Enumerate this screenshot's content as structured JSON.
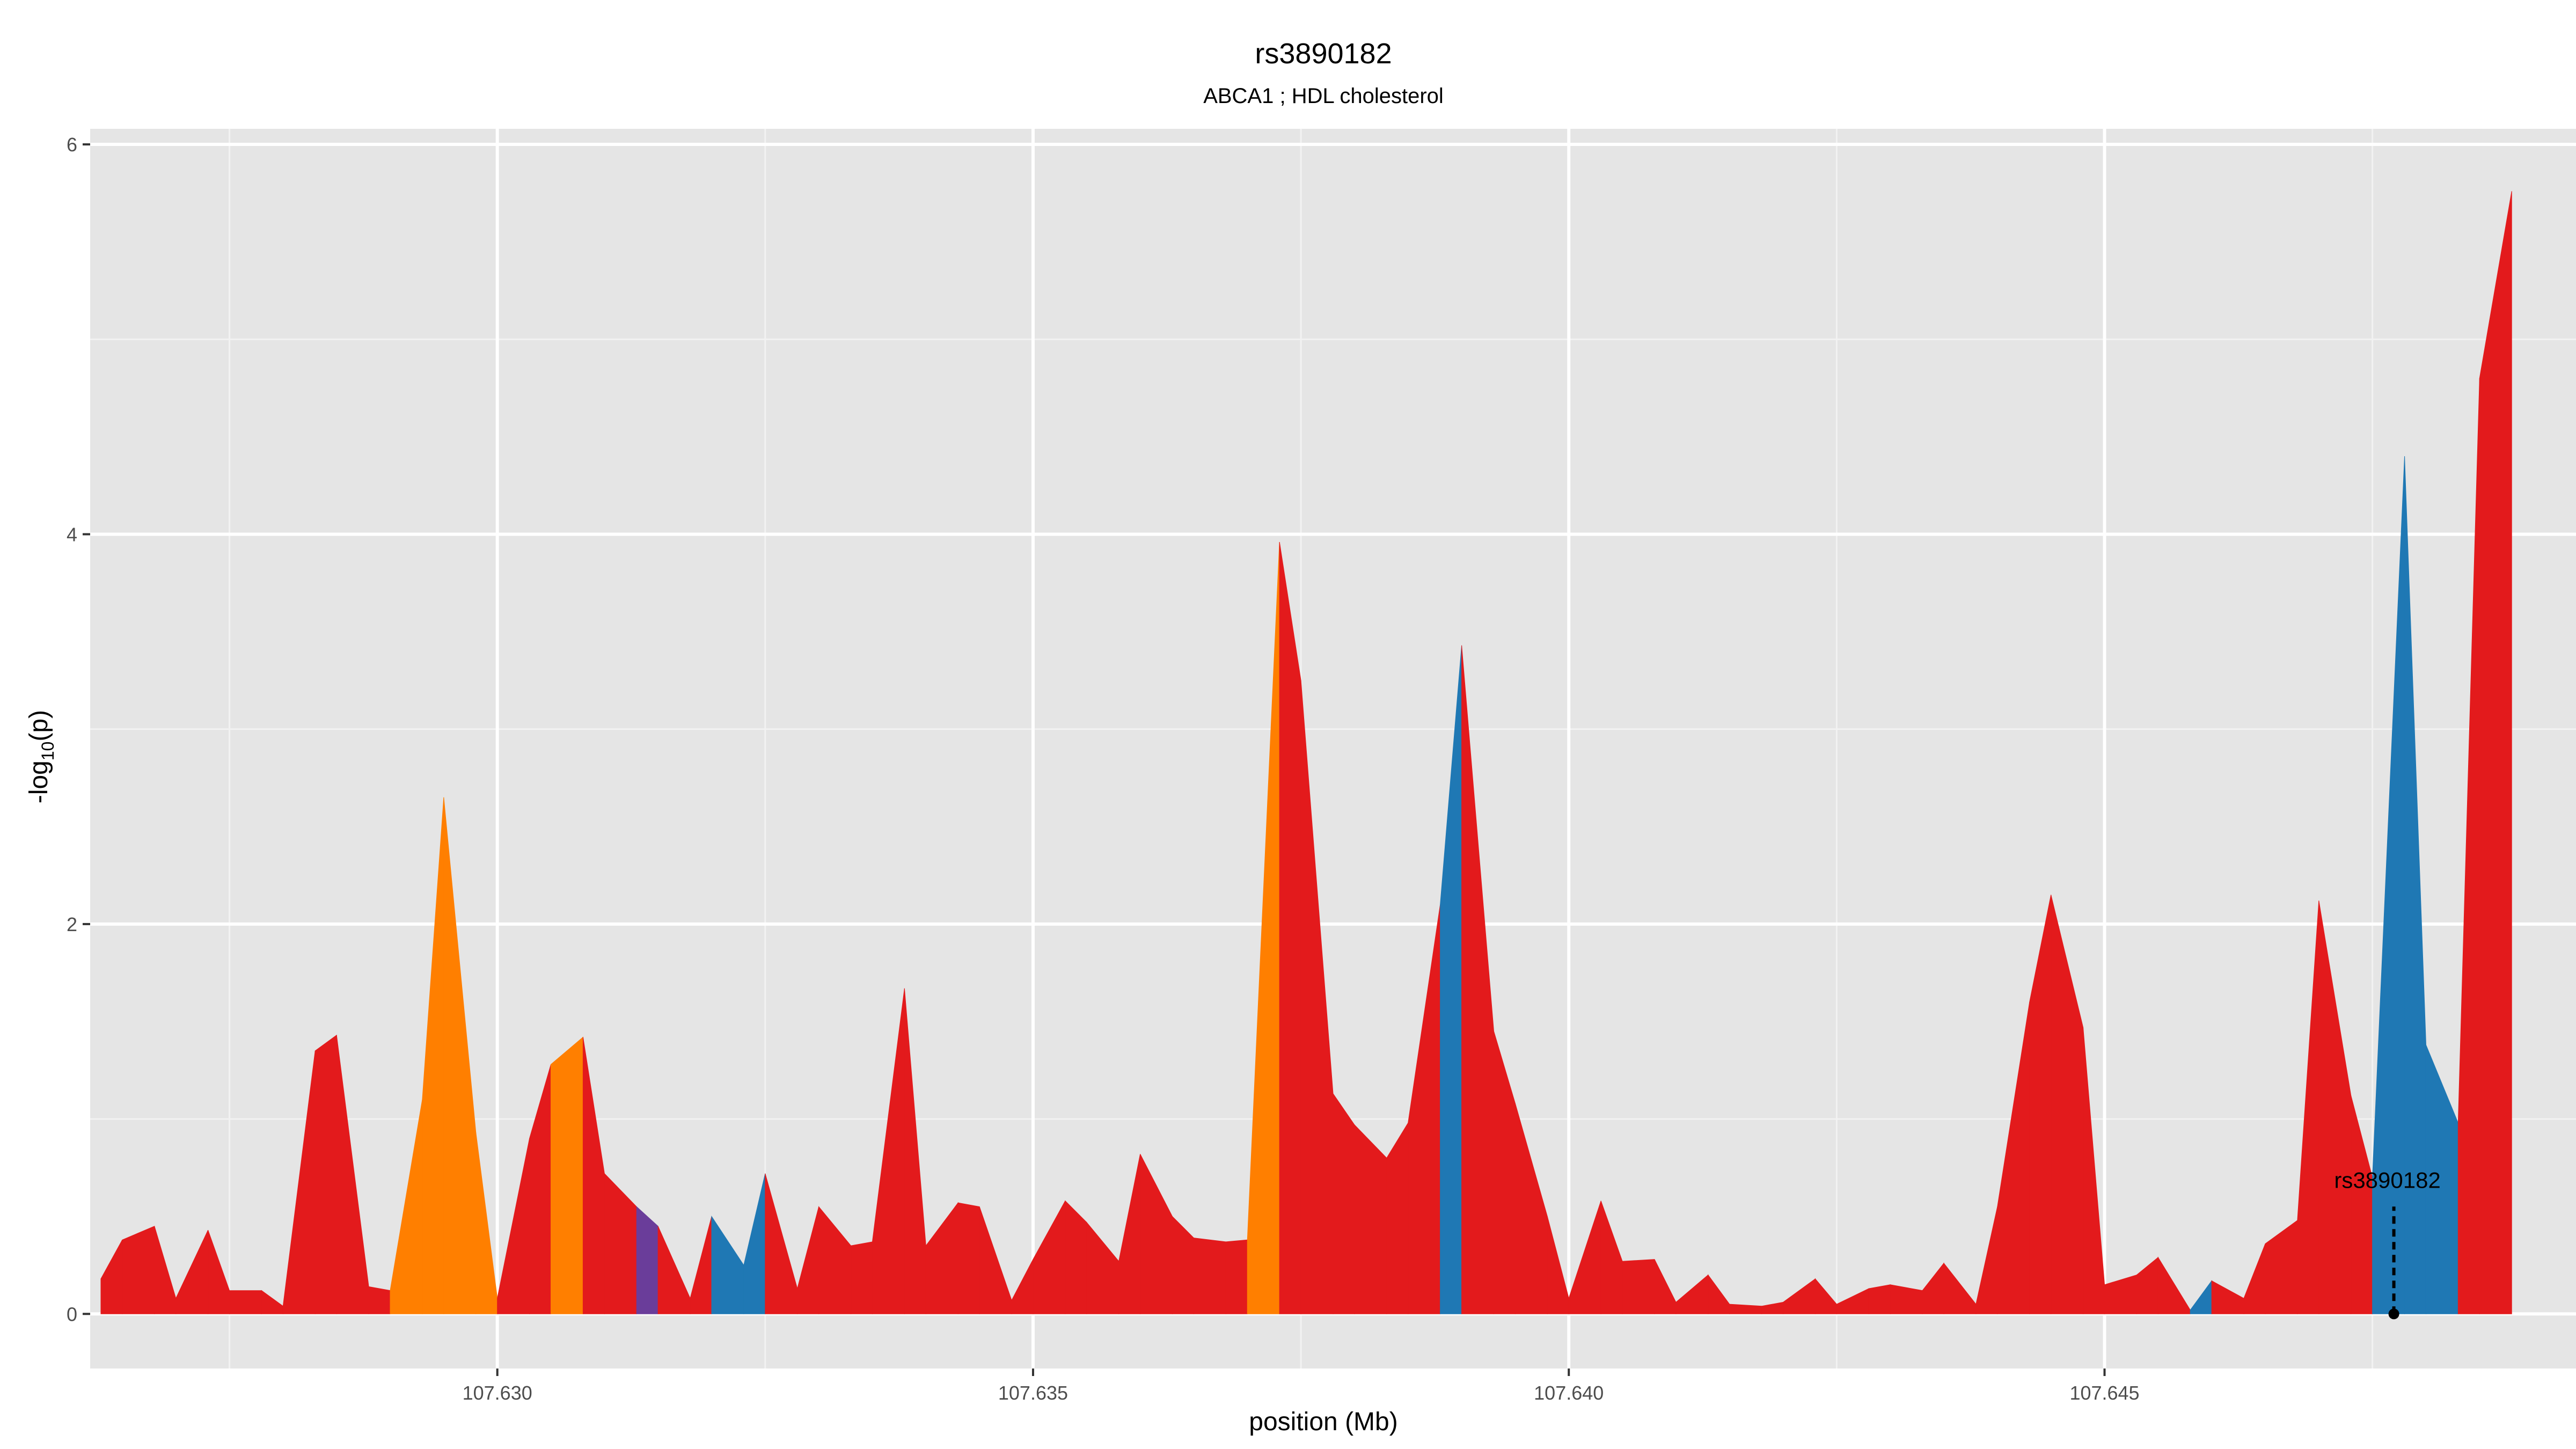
{
  "chart_data": {
    "type": "area",
    "title": "rs3890182",
    "subtitle": "ABCA1 ; HDL cholesterol",
    "xlabel": "position (Mb)",
    "ylabel": "-log10(p)",
    "ylabel_parts": {
      "prefix": "-log",
      "sub": "10",
      "suffix": "(p)"
    },
    "xlim": [
      107.6262,
      107.6494
    ],
    "ylim": [
      -0.28,
      6.08
    ],
    "x_ticks": [
      107.63,
      107.635,
      107.64,
      107.645
    ],
    "x_tick_labels": [
      "107.630",
      "107.635",
      "107.640",
      "107.645"
    ],
    "y_ticks": [
      0,
      2,
      4,
      6
    ],
    "y_tick_labels": [
      "0",
      "2",
      "4",
      "6"
    ],
    "grid": true,
    "colors": {
      "background": "#e5e5e5",
      "grid": "#ffffff",
      "low_r2": "#e31a1c",
      "r2_0.2_0.4": "#1f78b4",
      "r2_0.4_0.6": "#ff7f00",
      "r2_0.6_0.8": "#6a3d9a"
    },
    "x": [
      107.6263,
      107.6265,
      107.6268,
      107.627,
      107.6273,
      107.6275,
      107.6278,
      107.628,
      107.6283,
      107.6285,
      107.6288,
      107.629,
      107.6293,
      107.6295,
      107.6298,
      107.63,
      107.6303,
      107.6305,
      107.6308,
      107.631,
      107.6313,
      107.6315,
      107.6318,
      107.632,
      107.6323,
      107.6325,
      107.6328,
      107.633,
      107.6333,
      107.6335,
      107.6338,
      107.634,
      107.6343,
      107.6345,
      107.6348,
      107.635,
      107.6353,
      107.6355,
      107.6358,
      107.636,
      107.6363,
      107.6365,
      107.6368,
      107.637,
      107.6373,
      107.6375,
      107.6378,
      107.638,
      107.6383,
      107.6385,
      107.6388,
      107.639,
      107.6393,
      107.6395,
      107.6398,
      107.64,
      107.6403,
      107.6405,
      107.6408,
      107.641,
      107.6413,
      107.6415,
      107.6418,
      107.642,
      107.6423,
      107.6425,
      107.6428,
      107.643,
      107.6433,
      107.6435,
      107.6438,
      107.644,
      107.6443,
      107.6445,
      107.6448,
      107.645,
      107.6453,
      107.6455,
      107.6458,
      107.646,
      107.6463,
      107.6465,
      107.6468,
      107.647,
      107.6473,
      107.6475,
      107.6478,
      107.648,
      107.6483,
      107.6485,
      107.6488
    ],
    "y": [
      0.18,
      0.38,
      0.45,
      0.08,
      0.43,
      0.12,
      0.12,
      0.04,
      1.35,
      1.43,
      0.14,
      0.12,
      1.1,
      2.65,
      0.93,
      0.08,
      0.9,
      1.28,
      1.42,
      0.72,
      0.55,
      0.45,
      0.08,
      0.5,
      0.25,
      0.72,
      0.13,
      0.55,
      0.35,
      0.37,
      1.67,
      0.35,
      0.57,
      0.55,
      0.07,
      0.28,
      0.58,
      0.47,
      0.27,
      0.82,
      0.5,
      0.39,
      0.37,
      0.38,
      3.96,
      3.25,
      1.13,
      0.97,
      0.8,
      0.98,
      2.1,
      3.43,
      1.45,
      1.08,
      0.5,
      0.08,
      0.58,
      0.27,
      0.28,
      0.06,
      0.2,
      0.05,
      0.04,
      0.06,
      0.18,
      0.05,
      0.13,
      0.15,
      0.12,
      0.26,
      0.05,
      0.55,
      1.6,
      2.15,
      1.47,
      0.15,
      0.2,
      0.29,
      0.02,
      0.17,
      0.08,
      0.36,
      0.48,
      2.12,
      1.12,
      0.7,
      4.4,
      1.38,
      0.98,
      4.8,
      5.76
    ],
    "segment_color_class": [
      "low",
      "low",
      "low",
      "low",
      "low",
      "low",
      "low",
      "low",
      "low",
      "low",
      "low",
      "orange",
      "orange",
      "orange",
      "orange",
      "low",
      "low",
      "orange",
      "low",
      "low",
      "purple",
      "low",
      "low",
      "blue",
      "blue",
      "low",
      "low",
      "low",
      "low",
      "low",
      "low",
      "low",
      "low",
      "low",
      "low",
      "low",
      "low",
      "low",
      "low",
      "low",
      "low",
      "low",
      "low",
      "orange",
      "low",
      "low",
      "low",
      "low",
      "low",
      "low",
      "blue",
      "low",
      "low",
      "low",
      "low",
      "low",
      "low",
      "low",
      "low",
      "low",
      "low",
      "low",
      "low",
      "low",
      "low",
      "low",
      "low",
      "low",
      "low",
      "low",
      "low",
      "low",
      "low",
      "low",
      "low",
      "low",
      "low",
      "low",
      "blue",
      "low",
      "low",
      "low",
      "low",
      "low",
      "low",
      "blue",
      "blue",
      "blue",
      "low",
      "low"
    ],
    "highlight": {
      "label": "rs3890182",
      "x": 107.6477,
      "y": 0
    }
  }
}
